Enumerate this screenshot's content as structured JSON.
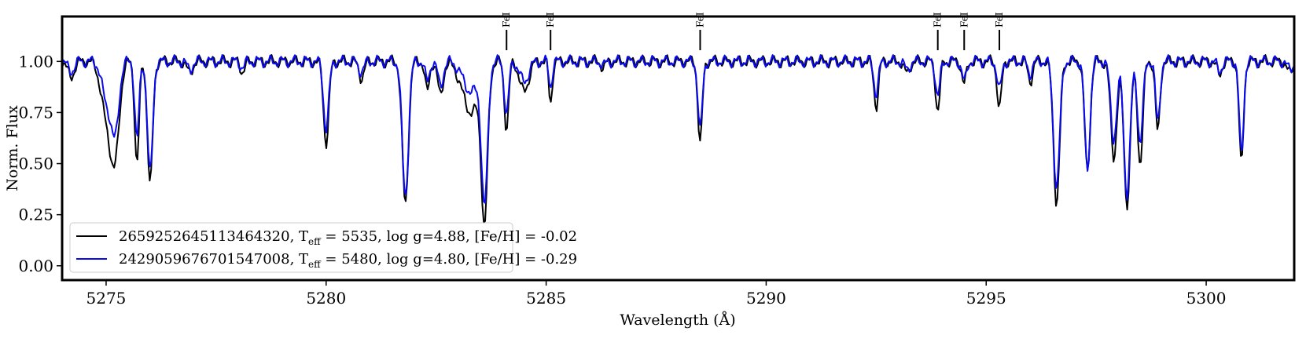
{
  "chart_data": {
    "type": "line",
    "title": "",
    "xlabel": "Wavelength (Å)",
    "ylabel": "Norm. Flux",
    "xlim": [
      5274.0,
      5302.0
    ],
    "ylim": [
      -0.07,
      1.22
    ],
    "xticks": [
      5275,
      5280,
      5285,
      5290,
      5295,
      5300
    ],
    "yticks": [
      0.0,
      0.25,
      0.5,
      0.75,
      1.0
    ],
    "ytick_labels": [
      "0.00",
      "0.25",
      "0.50",
      "0.75",
      "1.00"
    ],
    "grid": false,
    "legend_position": "lower-left",
    "line_markers": [
      {
        "label": "FeI",
        "x": 5284.1
      },
      {
        "label": "FeI",
        "x": 5285.1
      },
      {
        "label": "FeI",
        "x": 5288.5
      },
      {
        "label": "FeI",
        "x": 5293.9
      },
      {
        "label": "FeI",
        "x": 5294.5
      },
      {
        "label": "FeI",
        "x": 5295.3
      }
    ],
    "continuum": 1.0,
    "series": [
      {
        "name": "2659252645113464320, T_eff = 5535, log g=4.88, [Fe/H] = -0.02",
        "legend_main": "2659252645113464320, T",
        "legend_sub": "eff",
        "legend_rest": " = 5535, log g=4.88, [Fe/H] = -0.02",
        "color": "#000000",
        "lines": [
          {
            "x": 5274.2,
            "depth": 0.08,
            "width": 0.07
          },
          {
            "x": 5275.0,
            "depth": 0.25,
            "width": 0.12
          },
          {
            "x": 5275.2,
            "depth": 0.45,
            "width": 0.1
          },
          {
            "x": 5275.7,
            "depth": 0.5,
            "width": 0.05
          },
          {
            "x": 5276.0,
            "depth": 0.6,
            "width": 0.06
          },
          {
            "x": 5276.9,
            "depth": 0.06,
            "width": 0.06
          },
          {
            "x": 5278.1,
            "depth": 0.05,
            "width": 0.05
          },
          {
            "x": 5280.0,
            "depth": 0.4,
            "width": 0.06
          },
          {
            "x": 5280.8,
            "depth": 0.08,
            "width": 0.06
          },
          {
            "x": 5281.8,
            "depth": 0.7,
            "width": 0.07
          },
          {
            "x": 5282.3,
            "depth": 0.15,
            "width": 0.05
          },
          {
            "x": 5282.6,
            "depth": 0.17,
            "width": 0.06
          },
          {
            "x": 5283.3,
            "depth": 0.25,
            "width": 0.2
          },
          {
            "x": 5283.6,
            "depth": 0.73,
            "width": 0.07
          },
          {
            "x": 5284.1,
            "depth": 0.33,
            "width": 0.05
          },
          {
            "x": 5284.5,
            "depth": 0.15,
            "width": 0.1
          },
          {
            "x": 5285.1,
            "depth": 0.2,
            "width": 0.04
          },
          {
            "x": 5286.3,
            "depth": 0.03,
            "width": 0.05
          },
          {
            "x": 5288.5,
            "depth": 0.4,
            "width": 0.05
          },
          {
            "x": 5292.5,
            "depth": 0.22,
            "width": 0.05
          },
          {
            "x": 5293.2,
            "depth": 0.06,
            "width": 0.06
          },
          {
            "x": 5293.9,
            "depth": 0.24,
            "width": 0.05
          },
          {
            "x": 5294.5,
            "depth": 0.11,
            "width": 0.05
          },
          {
            "x": 5295.3,
            "depth": 0.23,
            "width": 0.05
          },
          {
            "x": 5296.0,
            "depth": 0.1,
            "width": 0.05
          },
          {
            "x": 5296.6,
            "depth": 0.69,
            "width": 0.07
          },
          {
            "x": 5297.3,
            "depth": 0.55,
            "width": 0.06
          },
          {
            "x": 5297.9,
            "depth": 0.47,
            "width": 0.07
          },
          {
            "x": 5298.2,
            "depth": 0.7,
            "width": 0.07
          },
          {
            "x": 5298.5,
            "depth": 0.5,
            "width": 0.06
          },
          {
            "x": 5298.9,
            "depth": 0.35,
            "width": 0.05
          },
          {
            "x": 5300.3,
            "depth": 0.07,
            "width": 0.05
          },
          {
            "x": 5300.8,
            "depth": 0.51,
            "width": 0.05
          },
          {
            "x": 5301.9,
            "depth": 0.06,
            "width": 0.06
          }
        ]
      },
      {
        "name": "2429059676701547008, T_eff = 5480, log g=4.80, [Fe/H] = -0.29",
        "legend_main": "2429059676701547008, T",
        "legend_sub": "eff",
        "legend_rest": " = 5480, log g=4.80, [Fe/H] = -0.29",
        "color": "#0a0af0",
        "lines": [
          {
            "x": 5274.2,
            "depth": 0.05,
            "width": 0.07
          },
          {
            "x": 5275.0,
            "depth": 0.18,
            "width": 0.1
          },
          {
            "x": 5275.2,
            "depth": 0.35,
            "width": 0.09
          },
          {
            "x": 5275.7,
            "depth": 0.38,
            "width": 0.05
          },
          {
            "x": 5276.0,
            "depth": 0.55,
            "width": 0.06
          },
          {
            "x": 5276.9,
            "depth": 0.04,
            "width": 0.06
          },
          {
            "x": 5278.1,
            "depth": 0.03,
            "width": 0.05
          },
          {
            "x": 5280.0,
            "depth": 0.33,
            "width": 0.06
          },
          {
            "x": 5280.8,
            "depth": 0.05,
            "width": 0.06
          },
          {
            "x": 5281.8,
            "depth": 0.66,
            "width": 0.07
          },
          {
            "x": 5282.3,
            "depth": 0.1,
            "width": 0.05
          },
          {
            "x": 5282.6,
            "depth": 0.12,
            "width": 0.06
          },
          {
            "x": 5283.3,
            "depth": 0.15,
            "width": 0.18
          },
          {
            "x": 5283.6,
            "depth": 0.68,
            "width": 0.07
          },
          {
            "x": 5284.1,
            "depth": 0.26,
            "width": 0.05
          },
          {
            "x": 5284.5,
            "depth": 0.1,
            "width": 0.1
          },
          {
            "x": 5285.1,
            "depth": 0.12,
            "width": 0.04
          },
          {
            "x": 5286.3,
            "depth": 0.02,
            "width": 0.05
          },
          {
            "x": 5288.5,
            "depth": 0.34,
            "width": 0.05
          },
          {
            "x": 5292.5,
            "depth": 0.16,
            "width": 0.05
          },
          {
            "x": 5293.2,
            "depth": 0.04,
            "width": 0.06
          },
          {
            "x": 5293.9,
            "depth": 0.17,
            "width": 0.05
          },
          {
            "x": 5294.5,
            "depth": 0.1,
            "width": 0.05
          },
          {
            "x": 5295.3,
            "depth": 0.14,
            "width": 0.05
          },
          {
            "x": 5296.0,
            "depth": 0.06,
            "width": 0.05
          },
          {
            "x": 5296.6,
            "depth": 0.62,
            "width": 0.07
          },
          {
            "x": 5297.3,
            "depth": 0.53,
            "width": 0.06
          },
          {
            "x": 5297.9,
            "depth": 0.38,
            "width": 0.07
          },
          {
            "x": 5298.2,
            "depth": 0.65,
            "width": 0.07
          },
          {
            "x": 5298.5,
            "depth": 0.4,
            "width": 0.06
          },
          {
            "x": 5298.9,
            "depth": 0.3,
            "width": 0.05
          },
          {
            "x": 5300.3,
            "depth": 0.05,
            "width": 0.05
          },
          {
            "x": 5300.8,
            "depth": 0.46,
            "width": 0.05
          },
          {
            "x": 5301.9,
            "depth": 0.04,
            "width": 0.06
          }
        ]
      }
    ]
  }
}
